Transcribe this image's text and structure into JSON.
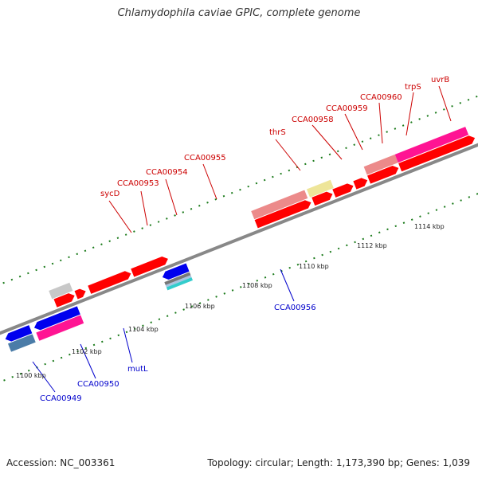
{
  "title": "Chlamydophila caviae GPIC, complete genome",
  "footer": {
    "accession": "Accession: NC_003361",
    "topology": "Topology: circular; Length: 1,173,390 bp; Genes: 1,039"
  },
  "scale": {
    "ticks": [
      "1100 kbp",
      "1102 kbp",
      "1104 kbp",
      "1106 kbp",
      "1108 kbp",
      "1110 kbp",
      "1112 kbp",
      "1114 kbp"
    ]
  },
  "colors": {
    "red_gene": "#ff0000",
    "blue_gene": "#0000ee",
    "pink_gene": "#ff1493",
    "salmon_gene": "#ec8a8a",
    "khaki_gene": "#eee599",
    "gray_gene": "#c8c8c8",
    "steel_gene": "#4b7ca8",
    "green_gene": "#7fd321",
    "cyan_gene": "#33cccc",
    "backbone": "#888888",
    "tick_green": "#1a7a1a",
    "label_red": "#cc0000",
    "label_blue": "#0000cc"
  },
  "gene_labels_forward": [
    "sycD",
    "CCA00953",
    "CCA00954",
    "CCA00955",
    "thrS",
    "CCA00958",
    "CCA00959",
    "CCA00960",
    "trpS",
    "uvrB"
  ],
  "gene_labels_reverse": [
    "mutL",
    "CCA00956",
    "CCA00950",
    "CCA00949"
  ]
}
